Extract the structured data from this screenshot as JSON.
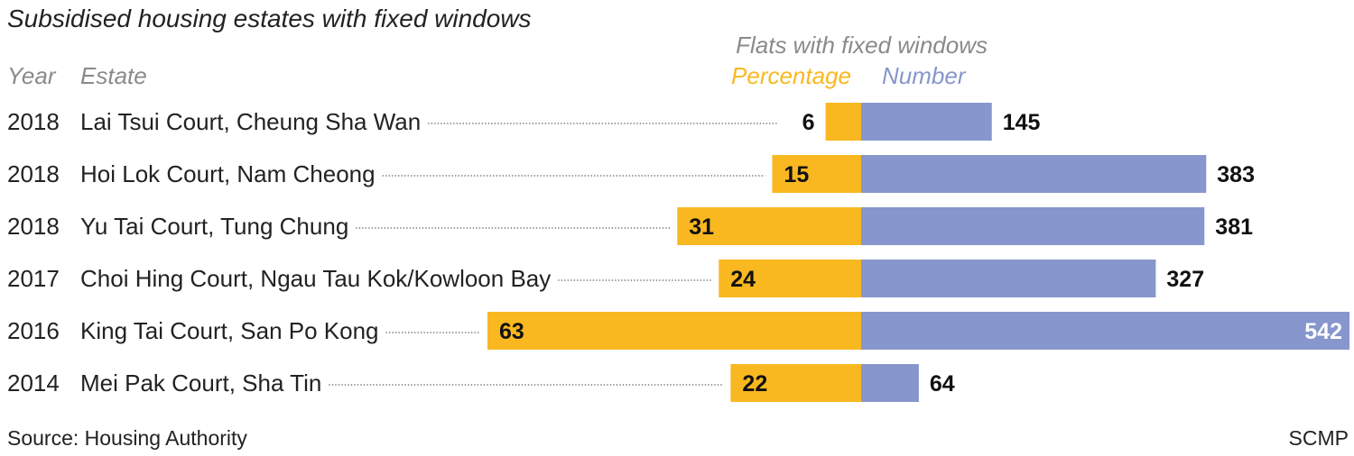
{
  "chart_data": {
    "type": "bar",
    "title": "Subsidised housing estates with fixed windows",
    "group_label": "Flats with fixed windows",
    "col_year": "Year",
    "col_estate": "Estate",
    "years": [
      "2018",
      "2018",
      "2018",
      "2017",
      "2016",
      "2014"
    ],
    "categories": [
      "Lai Tsui Court, Cheung Sha Wan",
      "Hoi Lok Court, Nam Cheong",
      "Yu Tai Court, Tung Chung",
      "Choi Hing Court, Ngau Tau Kok/Kowloon Bay",
      "King Tai Court, San Po Kong",
      "Mei Pak Court, Sha Tin"
    ],
    "series": [
      {
        "name": "Percentage",
        "values": [
          6,
          15,
          31,
          24,
          63,
          22
        ],
        "color": "#f9b820"
      },
      {
        "name": "Number",
        "values": [
          145,
          383,
          381,
          327,
          542,
          64
        ],
        "color": "#8796cc"
      }
    ],
    "grid": false,
    "legend": "top"
  },
  "footer": {
    "source": "Source: Housing Authority",
    "credit": "SCMP"
  }
}
